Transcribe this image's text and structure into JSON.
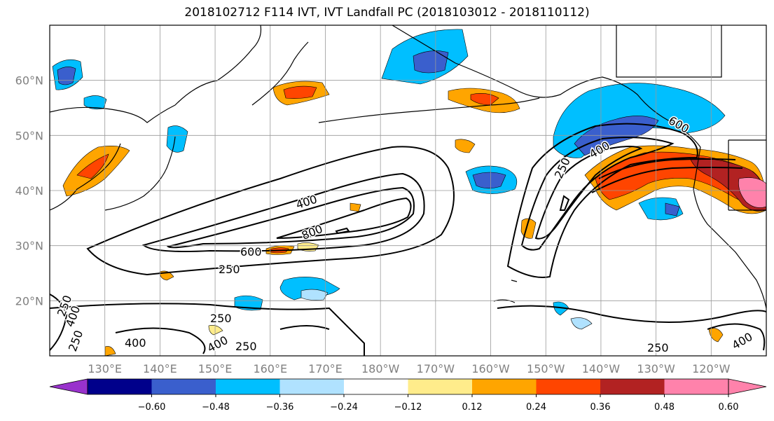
{
  "title": "2018102712 F114 IVT, IVT Landfall PC (2018103012 - 2018110112)",
  "map": {
    "lat_labels": [
      "20°N",
      "30°N",
      "40°N",
      "50°N",
      "60°N"
    ],
    "lon_labels": [
      "130°E",
      "140°E",
      "150°E",
      "160°E",
      "170°E",
      "180°W",
      "170°W",
      "160°W",
      "150°W",
      "140°W",
      "130°W",
      "120°W"
    ],
    "lat_range": [
      10,
      70
    ],
    "lon_range_deg_east": [
      120,
      250
    ],
    "grid": true,
    "ivt_contour_labels": [
      "400",
      "800",
      "600",
      "250",
      "250",
      "400",
      "250",
      "400",
      "600",
      "250",
      "250",
      "400",
      "400",
      "250",
      "400",
      "250"
    ]
  },
  "colorbar": {
    "ticks": [
      "−0.60",
      "−0.48",
      "−0.36",
      "−0.24",
      "−0.12",
      "0.12",
      "0.24",
      "0.36",
      "0.48",
      "0.60"
    ],
    "colors": [
      "#9932cc",
      "#00008b",
      "#3a5fcd",
      "#00bfff",
      "#b0e2ff",
      "#ffffff",
      "#ffec8b",
      "#ffa500",
      "#ff4500",
      "#b22222",
      "#ff82ab",
      "#ff82ab"
    ],
    "extend": "both"
  }
}
